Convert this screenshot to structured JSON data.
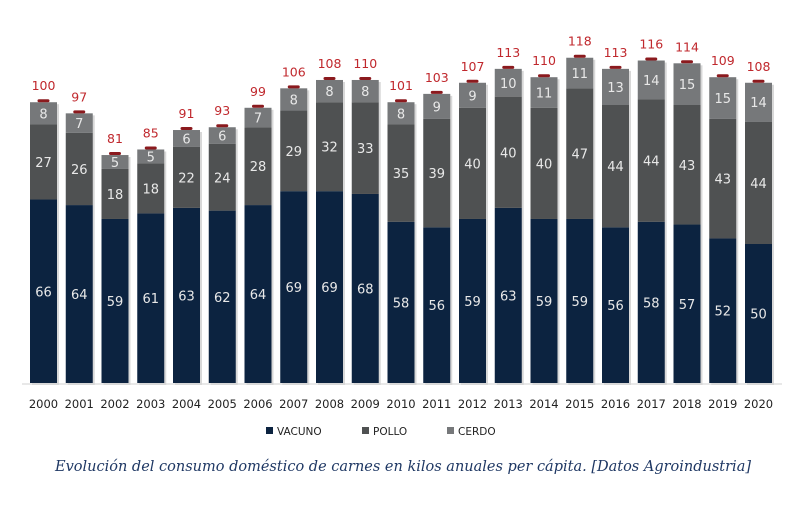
{
  "chart_data": {
    "type": "stacked-bar",
    "categories": [
      "2000",
      "2001",
      "2002",
      "2003",
      "2004",
      "2005",
      "2006",
      "2007",
      "2008",
      "2009",
      "2010",
      "2011",
      "2012",
      "2013",
      "2014",
      "2015",
      "2016",
      "2017",
      "2018",
      "2019",
      "2020"
    ],
    "series": [
      {
        "name": "VACUNO",
        "color": "#0c2340",
        "values": [
          66,
          64,
          59,
          61,
          63,
          62,
          64,
          69,
          69,
          68,
          58,
          56,
          59,
          63,
          59,
          59,
          56,
          58,
          57,
          52,
          50
        ]
      },
      {
        "name": "POLLO",
        "color": "#4f5152",
        "values": [
          27,
          26,
          18,
          18,
          22,
          24,
          28,
          29,
          32,
          33,
          35,
          39,
          40,
          40,
          40,
          47,
          44,
          44,
          43,
          43,
          44
        ]
      },
      {
        "name": "CERDO",
        "color": "#76787a",
        "values": [
          8,
          7,
          5,
          5,
          6,
          6,
          7,
          8,
          8,
          8,
          8,
          9,
          9,
          10,
          11,
          11,
          13,
          14,
          15,
          15,
          14
        ]
      }
    ],
    "totals": [
      100,
      97,
      81,
      85,
      91,
      93,
      99,
      106,
      108,
      110,
      101,
      103,
      107,
      113,
      110,
      118,
      113,
      116,
      114,
      109,
      108
    ],
    "total_color": "#c0282d",
    "legend_position": "bottom",
    "grid": false
  },
  "caption": "Evolución del consumo doméstico de carnes en kilos anuales per cápita. [Datos Agroindustria]"
}
